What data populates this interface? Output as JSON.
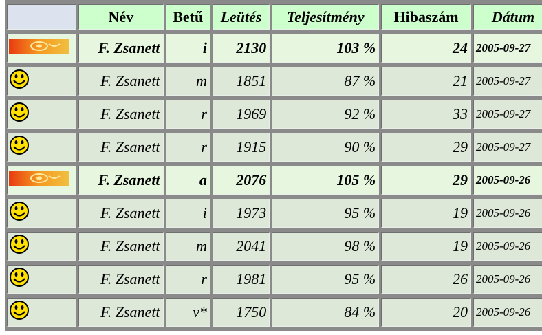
{
  "table": {
    "header": [
      "Név",
      "Betű",
      "Leütés",
      "Teljesítmény",
      "Hibaszám",
      "Dátum"
    ],
    "rows": [
      {
        "bold": true,
        "cells": [
          "F. Zsanett",
          "i",
          "2130",
          "103 %",
          "24",
          "2005-09-27"
        ]
      },
      {
        "bold": false,
        "cells": [
          "F. Zsanett",
          "m",
          "1851",
          "87 %",
          "21",
          "2005-09-27"
        ]
      },
      {
        "bold": false,
        "cells": [
          "F. Zsanett",
          "r",
          "1969",
          "92 %",
          "33",
          "2005-09-27"
        ]
      },
      {
        "bold": false,
        "cells": [
          "F. Zsanett",
          "r",
          "1915",
          "90 %",
          "29",
          "2005-09-27"
        ]
      },
      {
        "bold": true,
        "cells": [
          "F. Zsanett",
          "a",
          "2076",
          "105 %",
          "29",
          "2005-09-26"
        ]
      },
      {
        "bold": false,
        "cells": [
          "F. Zsanett",
          "i",
          "1973",
          "95 %",
          "19",
          "2005-09-26"
        ]
      },
      {
        "bold": false,
        "cells": [
          "F. Zsanett",
          "m",
          "2041",
          "98 %",
          "19",
          "2005-09-26"
        ]
      },
      {
        "bold": false,
        "cells": [
          "F. Zsanett",
          "r",
          "1981",
          "95 %",
          "26",
          "2005-09-26"
        ]
      },
      {
        "bold": false,
        "cells": [
          "F. Zsanett",
          "v*",
          "1750",
          "84 %",
          "20",
          "2005-09-26"
        ]
      }
    ]
  }
}
